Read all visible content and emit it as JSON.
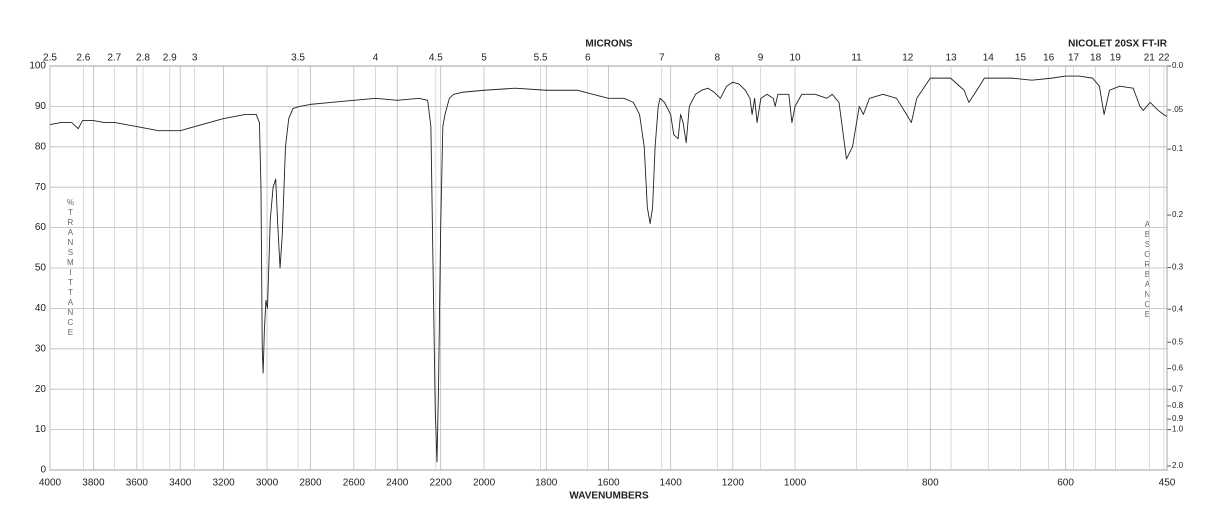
{
  "chart_data": {
    "type": "line",
    "title": "NICOLET 20SX FT-IR",
    "x2label": "MICRONS",
    "xlabel": "WAVENUMBERS",
    "ylabel": "%TRANSMITTANCE",
    "y2label": "ABSORBANCE",
    "color": "#222222",
    "grid": true,
    "xlim": [
      4000,
      450
    ],
    "x_scale_breaks": [
      2000,
      1000
    ],
    "xticks": [
      4000,
      3800,
      3600,
      3400,
      3200,
      3000,
      2800,
      2600,
      2400,
      2200,
      2000,
      1800,
      1600,
      1400,
      1200,
      1000,
      800,
      600,
      450
    ],
    "x2_scale": "reciprocal",
    "x2ticks": [
      2.5,
      2.6,
      2.7,
      2.8,
      2.9,
      3,
      3.5,
      4,
      4.5,
      5,
      5.5,
      6,
      7,
      8,
      9,
      10,
      11,
      12,
      13,
      14,
      15,
      16,
      17,
      18,
      19,
      21,
      22
    ],
    "ylim": [
      0,
      100
    ],
    "yticks": [
      0,
      10,
      20,
      30,
      40,
      50,
      60,
      70,
      80,
      90,
      100
    ],
    "y2_scale": "absorbance",
    "y2ticks": [
      {
        "value": 0,
        "label": "0.0"
      },
      {
        "value": 0.05,
        "label": ".05"
      },
      0.1,
      0.2,
      0.3,
      0.4,
      0.5,
      0.6,
      0.7,
      0.8,
      0.9,
      {
        "value": 1,
        "label": "1.0"
      },
      {
        "value": 2,
        "label": "2.0"
      }
    ],
    "x": [
      4000,
      3950,
      3900,
      3870,
      3850,
      3800,
      3750,
      3700,
      3650,
      3600,
      3500,
      3400,
      3300,
      3200,
      3100,
      3050,
      3035,
      3028,
      3022,
      3018,
      3012,
      3005,
      2998,
      2985,
      2972,
      2960,
      2950,
      2940,
      2930,
      2915,
      2900,
      2880,
      2850,
      2800,
      2700,
      2600,
      2500,
      2400,
      2300,
      2260,
      2245,
      2235,
      2225,
      2217,
      2210,
      2200,
      2190,
      2180,
      2160,
      2140,
      2100,
      2000,
      1900,
      1800,
      1700,
      1650,
      1600,
      1550,
      1520,
      1500,
      1485,
      1475,
      1466,
      1458,
      1450,
      1440,
      1434,
      1420,
      1400,
      1390,
      1376,
      1368,
      1360,
      1350,
      1340,
      1320,
      1300,
      1280,
      1260,
      1240,
      1220,
      1200,
      1180,
      1160,
      1145,
      1138,
      1130,
      1122,
      1110,
      1090,
      1070,
      1064,
      1055,
      1040,
      1020,
      1010,
      1000,
      990,
      970,
      953,
      945,
      935,
      924,
      915,
      905,
      899,
      890,
      870,
      850,
      835,
      828,
      820,
      800,
      770,
      750,
      743,
      735,
      720,
      680,
      650,
      620,
      600,
      580,
      560,
      550,
      543,
      535,
      520,
      500,
      490,
      485,
      475,
      463,
      455,
      450
    ],
    "values": [
      85.5,
      86,
      86,
      84.5,
      86.5,
      86.5,
      86,
      86,
      85.5,
      85,
      84,
      84,
      85.5,
      87,
      88,
      88,
      86,
      70,
      30,
      24,
      35,
      42,
      40,
      62,
      70,
      72,
      60,
      50,
      58,
      80,
      87,
      89.5,
      90,
      90.5,
      91,
      91.5,
      92,
      91.5,
      92,
      91.5,
      85,
      50,
      15,
      2,
      20,
      60,
      85,
      88,
      92,
      93,
      93.5,
      94,
      94.5,
      94,
      94,
      93,
      92,
      92,
      91,
      88,
      80,
      65,
      61,
      65,
      80,
      90,
      92,
      91,
      88,
      83,
      82,
      88,
      86,
      81,
      90,
      93,
      94,
      94.5,
      93.5,
      92,
      95,
      96,
      95.5,
      94,
      92,
      88,
      92,
      86,
      92,
      93,
      92,
      90,
      93,
      93,
      93,
      86,
      90,
      93,
      93,
      92,
      93,
      91,
      77,
      80,
      90,
      88,
      92,
      93,
      92,
      88,
      86,
      92,
      97,
      97,
      94,
      91,
      93,
      97,
      97,
      96.5,
      97,
      97.5,
      97.5,
      97,
      95,
      88,
      94,
      95,
      94.5,
      90,
      89,
      91,
      89,
      88,
      87.5
    ]
  }
}
